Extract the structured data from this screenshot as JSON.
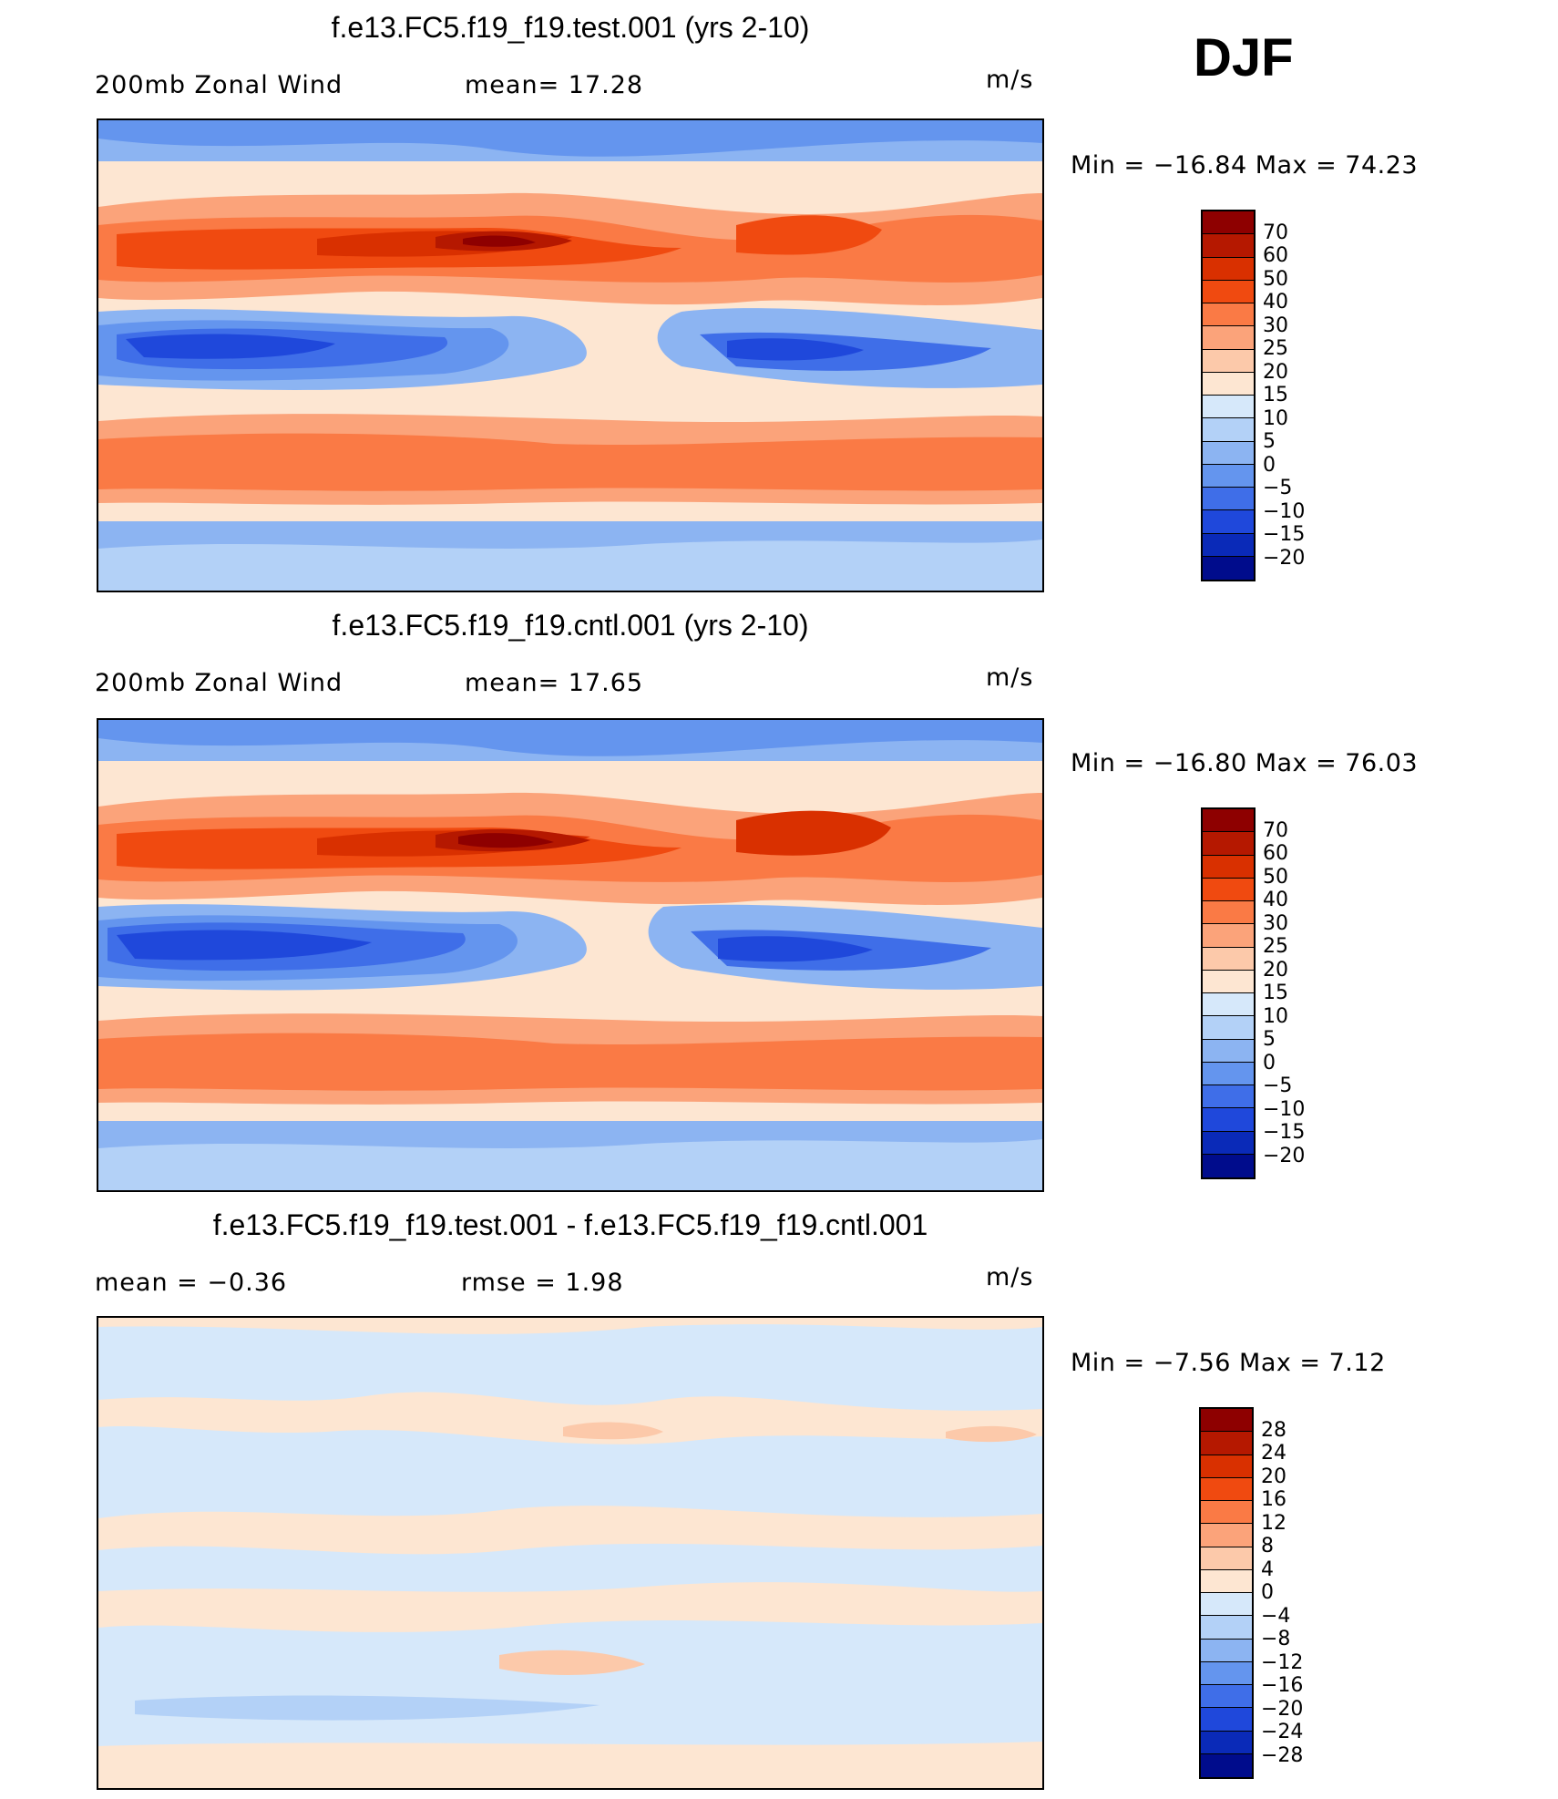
{
  "season": "DJF",
  "panels": [
    {
      "title": "f.e13.FC5.f19_f19.test.001 (yrs 2-10)",
      "left_label": "200mb  Zonal  Wind",
      "middle_label": "mean=   17.28",
      "units": "m/s",
      "range_text": "Min  =  −16.84  Max  =    74.23",
      "colorbar": {
        "labels": [
          "70",
          "60",
          "50",
          "40",
          "30",
          "25",
          "20",
          "15",
          "10",
          "5",
          "0",
          "−5",
          "−10",
          "−15",
          "−20"
        ],
        "colors": [
          "#8e0000",
          "#b51800",
          "#d93000",
          "#f04a10",
          "#fa7a45",
          "#fba37a",
          "#fcc9aa",
          "#fde6d2",
          "#d6e8fa",
          "#b3d1f7",
          "#8cb4f2",
          "#6495ee",
          "#3f6ee8",
          "#1f48db",
          "#0a2ab8",
          "#000c8c"
        ]
      }
    },
    {
      "title": "f.e13.FC5.f19_f19.cntl.001 (yrs 2-10)",
      "left_label": "200mb  Zonal  Wind",
      "middle_label": "mean=   17.65",
      "units": "m/s",
      "range_text": "Min  =  −16.80  Max  =    76.03",
      "colorbar": {
        "labels": [
          "70",
          "60",
          "50",
          "40",
          "30",
          "25",
          "20",
          "15",
          "10",
          "5",
          "0",
          "−5",
          "−10",
          "−15",
          "−20"
        ],
        "colors": [
          "#8e0000",
          "#b51800",
          "#d93000",
          "#f04a10",
          "#fa7a45",
          "#fba37a",
          "#fcc9aa",
          "#fde6d2",
          "#d6e8fa",
          "#b3d1f7",
          "#8cb4f2",
          "#6495ee",
          "#3f6ee8",
          "#1f48db",
          "#0a2ab8",
          "#000c8c"
        ]
      }
    },
    {
      "title": "f.e13.FC5.f19_f19.test.001 - f.e13.FC5.f19_f19.cntl.001",
      "left_label": "mean  =    −0.36",
      "middle_label": "rmse  =     1.98",
      "units": "m/s",
      "range_text": "Min  =     −7.56  Max  =     7.12",
      "colorbar": {
        "labels": [
          "28",
          "24",
          "20",
          "16",
          "12",
          "8",
          "4",
          "0",
          "−4",
          "−8",
          "−12",
          "−16",
          "−20",
          "−24",
          "−28"
        ],
        "colors": [
          "#8e0000",
          "#b51800",
          "#d93000",
          "#f04a10",
          "#fa7a45",
          "#fba37a",
          "#fcc9aa",
          "#fde6d2",
          "#d6e8fa",
          "#b3d1f7",
          "#8cb4f2",
          "#6495ee",
          "#3f6ee8",
          "#1f48db",
          "#0a2ab8",
          "#000c8c"
        ]
      }
    }
  ]
}
